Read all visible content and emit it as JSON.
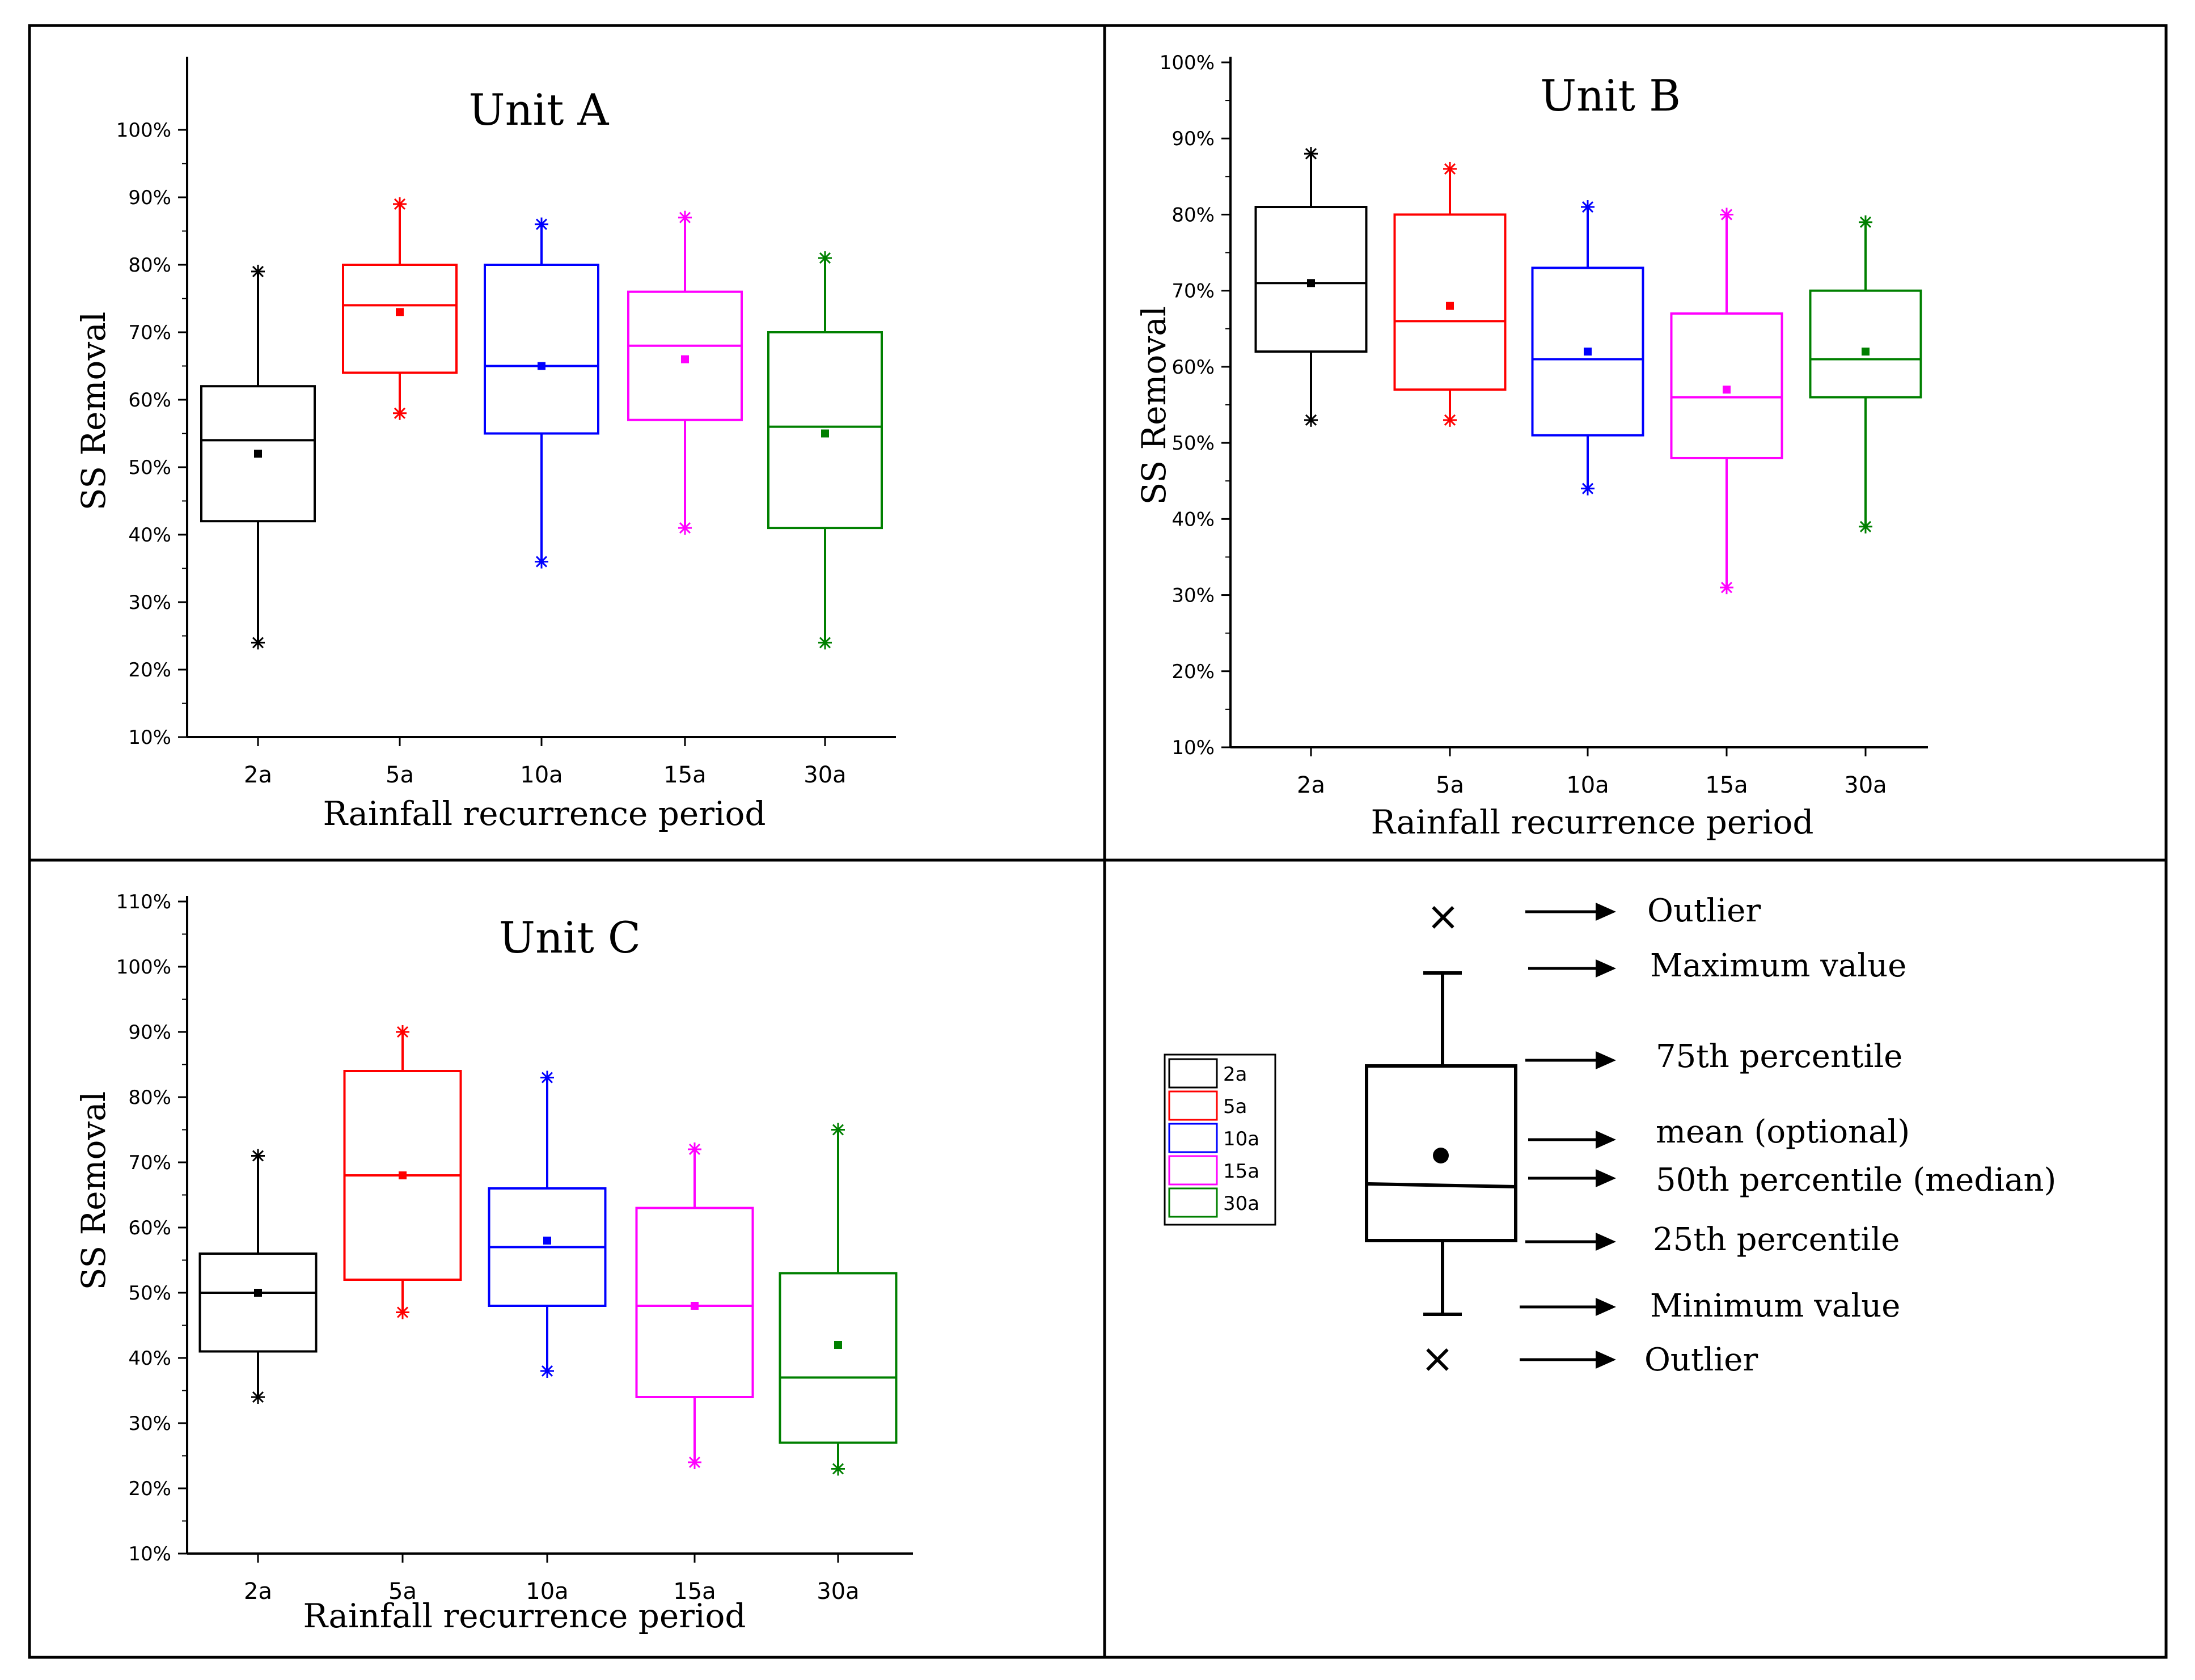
{
  "panels": [
    {
      "id": "A"
    },
    {
      "id": "B"
    },
    {
      "id": "C"
    }
  ],
  "chart_data": [
    {
      "type": "box",
      "title": "Unit A",
      "xlabel": "Rainfall recurrence period",
      "ylabel": "SS Removal",
      "ylim": [
        10,
        110
      ],
      "yticks": [
        10,
        20,
        30,
        40,
        50,
        60,
        70,
        80,
        90,
        100
      ],
      "ytick_labels": [
        "10%",
        "20%",
        "30%",
        "40%",
        "50%",
        "60%",
        "70%",
        "80%",
        "90%",
        "100%"
      ],
      "categories": [
        "2a",
        "5a",
        "10a",
        "15a",
        "30a"
      ],
      "series": [
        {
          "name": "2a",
          "color": "#000000",
          "min": 24,
          "q1": 42,
          "median": 54,
          "q3": 62,
          "max": 79,
          "mean": 52
        },
        {
          "name": "5a",
          "color": "#ff0000",
          "min": 58,
          "q1": 64,
          "median": 74,
          "q3": 80,
          "max": 89,
          "mean": 73
        },
        {
          "name": "10a",
          "color": "#0000ff",
          "min": 36,
          "q1": 55,
          "median": 65,
          "q3": 80,
          "max": 86,
          "mean": 65
        },
        {
          "name": "15a",
          "color": "#ff00ff",
          "min": 41,
          "q1": 57,
          "median": 68,
          "q3": 76,
          "max": 87,
          "mean": 66
        },
        {
          "name": "30a",
          "color": "#008000",
          "min": 24,
          "q1": 41,
          "median": 56,
          "q3": 70,
          "max": 81,
          "mean": 55
        }
      ]
    },
    {
      "type": "box",
      "title": "Unit B",
      "xlabel": "Rainfall recurrence period",
      "ylabel": "SS Removal",
      "ylim": [
        10,
        100
      ],
      "yticks": [
        10,
        20,
        30,
        40,
        50,
        60,
        70,
        80,
        90,
        100
      ],
      "ytick_labels": [
        "10%",
        "20%",
        "30%",
        "40%",
        "50%",
        "60%",
        "70%",
        "80%",
        "90%",
        "100%"
      ],
      "categories": [
        "2a",
        "5a",
        "10a",
        "15a",
        "30a"
      ],
      "series": [
        {
          "name": "2a",
          "color": "#000000",
          "min": 53,
          "q1": 62,
          "median": 71,
          "q3": 81,
          "max": 88,
          "mean": 71
        },
        {
          "name": "5a",
          "color": "#ff0000",
          "min": 53,
          "q1": 57,
          "median": 66,
          "q3": 80,
          "max": 86,
          "mean": 68
        },
        {
          "name": "10a",
          "color": "#0000ff",
          "min": 44,
          "q1": 51,
          "median": 61,
          "q3": 73,
          "max": 81,
          "mean": 62
        },
        {
          "name": "15a",
          "color": "#ff00ff",
          "min": 31,
          "q1": 48,
          "median": 56,
          "q3": 67,
          "max": 80,
          "mean": 57
        },
        {
          "name": "30a",
          "color": "#008000",
          "min": 39,
          "q1": 56,
          "median": 61,
          "q3": 70,
          "max": 79,
          "mean": 62
        }
      ]
    },
    {
      "type": "box",
      "title": "Unit C",
      "xlabel": "Rainfall recurrence period",
      "ylabel": "SS Removal",
      "ylim": [
        10,
        110
      ],
      "yticks": [
        10,
        20,
        30,
        40,
        50,
        60,
        70,
        80,
        90,
        100,
        110
      ],
      "ytick_labels": [
        "10%",
        "20%",
        "30%",
        "40%",
        "50%",
        "60%",
        "70%",
        "80%",
        "90%",
        "100%",
        "110%"
      ],
      "categories": [
        "2a",
        "5a",
        "10a",
        "15a",
        "30a"
      ],
      "series": [
        {
          "name": "2a",
          "color": "#000000",
          "min": 34,
          "q1": 41,
          "median": 50,
          "q3": 56,
          "max": 71,
          "mean": 50
        },
        {
          "name": "5a",
          "color": "#ff0000",
          "min": 47,
          "q1": 52,
          "median": 68,
          "q3": 84,
          "max": 90,
          "mean": 68
        },
        {
          "name": "10a",
          "color": "#0000ff",
          "min": 38,
          "q1": 48,
          "median": 57,
          "q3": 66,
          "max": 83,
          "mean": 58
        },
        {
          "name": "15a",
          "color": "#ff00ff",
          "min": 24,
          "q1": 34,
          "median": 48,
          "q3": 63,
          "max": 72,
          "mean": 48
        },
        {
          "name": "30a",
          "color": "#008000",
          "min": 23,
          "q1": 27,
          "median": 37,
          "q3": 53,
          "max": 75,
          "mean": 42
        }
      ]
    }
  ],
  "legend": {
    "items": [
      {
        "label": "2a",
        "color": "#000000"
      },
      {
        "label": "5a",
        "color": "#ff0000"
      },
      {
        "label": "10a",
        "color": "#0000ff"
      },
      {
        "label": "15a",
        "color": "#ff00ff"
      },
      {
        "label": "30a",
        "color": "#008000"
      }
    ]
  },
  "key": {
    "outlier_top": "Outlier",
    "maximum": "Maximum value",
    "p75": "75th percentile",
    "mean": "mean (optional)",
    "median": "50th percentile (median)",
    "p25": "25th percentile",
    "minimum": "Minimum value",
    "outlier_bottom": "Outlier",
    "outlier_glyph": "×"
  }
}
